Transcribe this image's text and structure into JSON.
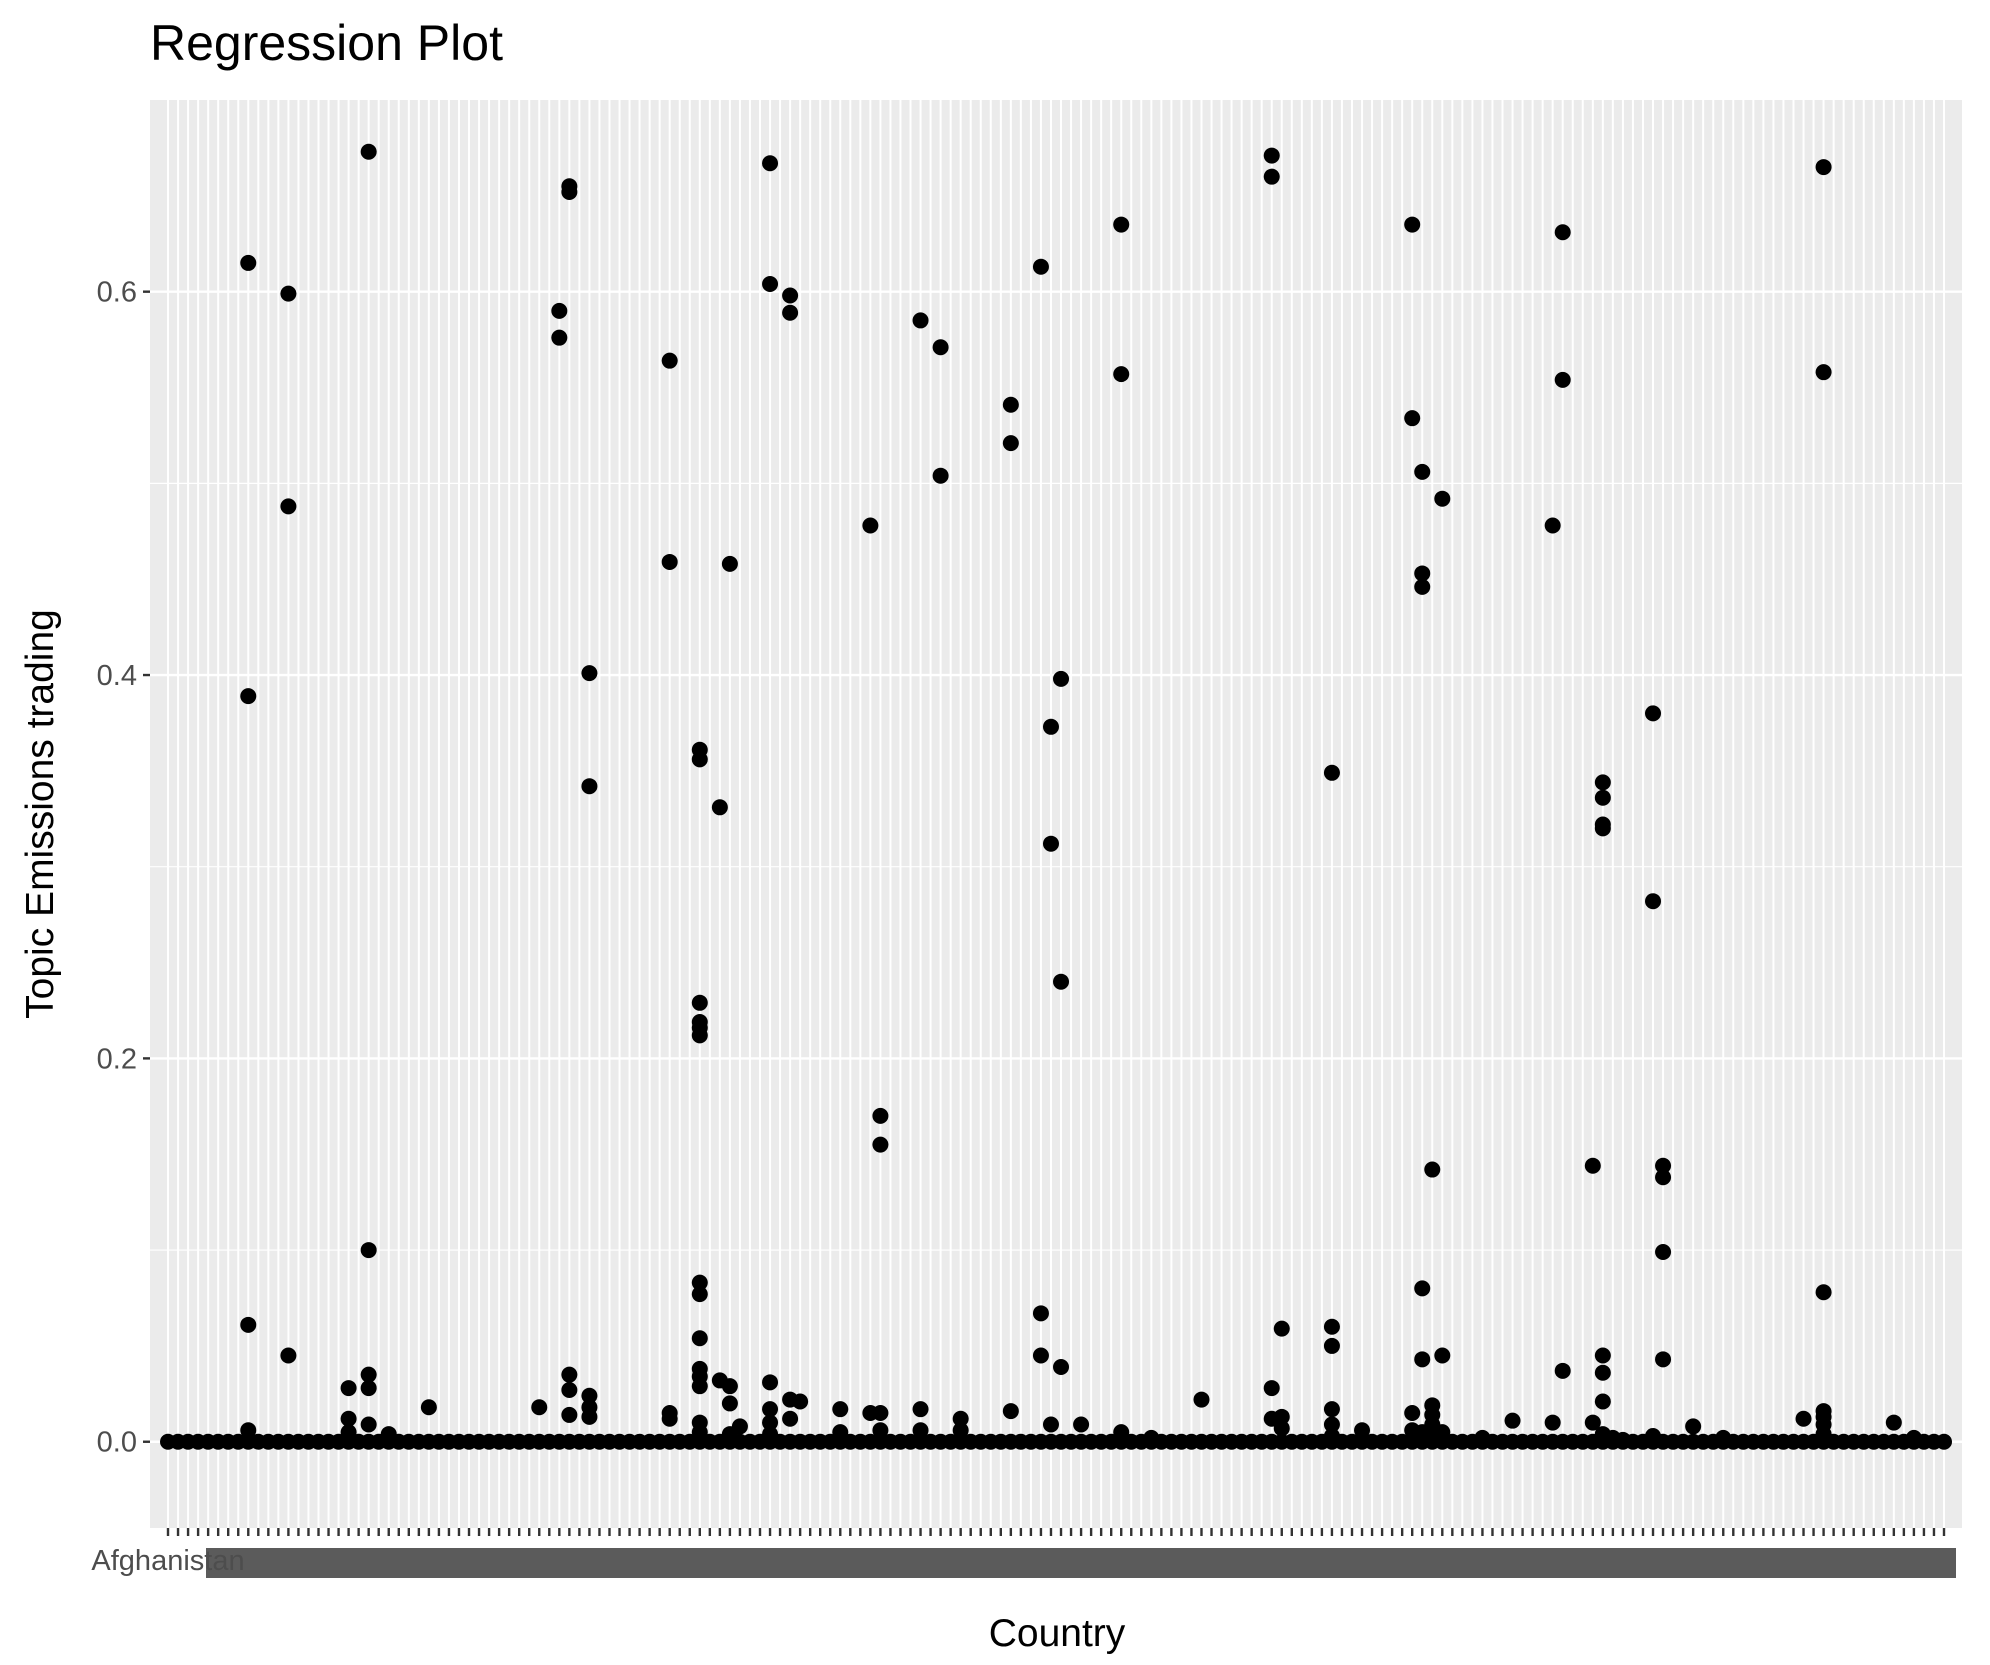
{
  "chart_data": {
    "type": "scatter",
    "title": "Regression Plot",
    "xlabel": "Country",
    "ylabel": "Topic Emissions trading",
    "category_count": 178,
    "first_category_label": "Afghanistan",
    "ylim": [
      -0.045,
      0.7
    ],
    "yticks": [
      0.0,
      0.2,
      0.4,
      0.6
    ],
    "ytick_labels": [
      "0.0",
      "0.2",
      "0.4",
      "0.6"
    ],
    "grid": true,
    "legend": "none",
    "point_color": "#000000",
    "panel_color": "#ebebeb",
    "grid_color": "#ffffff",
    "points": [
      [
        8,
        0.615
      ],
      [
        8,
        0.389
      ],
      [
        8,
        0.061
      ],
      [
        8,
        0.006
      ],
      [
        12,
        0.599
      ],
      [
        12,
        0.488
      ],
      [
        12,
        0.045
      ],
      [
        18,
        0.028
      ],
      [
        18,
        0.012
      ],
      [
        18,
        0.005
      ],
      [
        20,
        0.673
      ],
      [
        20,
        0.1
      ],
      [
        20,
        0.035
      ],
      [
        20,
        0.028
      ],
      [
        20,
        0.009
      ],
      [
        22,
        0.004
      ],
      [
        26,
        0.018
      ],
      [
        37,
        0.018
      ],
      [
        39,
        0.59
      ],
      [
        39,
        0.576
      ],
      [
        40,
        0.655
      ],
      [
        40,
        0.652
      ],
      [
        40,
        0.035
      ],
      [
        40,
        0.027
      ],
      [
        40,
        0.014
      ],
      [
        42,
        0.401
      ],
      [
        42,
        0.342
      ],
      [
        42,
        0.024
      ],
      [
        42,
        0.018
      ],
      [
        42,
        0.013
      ],
      [
        50,
        0.564
      ],
      [
        50,
        0.459
      ],
      [
        50,
        0.015
      ],
      [
        50,
        0.012
      ],
      [
        53,
        0.361
      ],
      [
        53,
        0.356
      ],
      [
        53,
        0.229
      ],
      [
        53,
        0.219
      ],
      [
        53,
        0.216
      ],
      [
        53,
        0.212
      ],
      [
        53,
        0.083
      ],
      [
        53,
        0.077
      ],
      [
        53,
        0.054
      ],
      [
        53,
        0.038
      ],
      [
        53,
        0.034
      ],
      [
        53,
        0.029
      ],
      [
        53,
        0.01
      ],
      [
        53,
        0.005
      ],
      [
        55,
        0.331
      ],
      [
        55,
        0.032
      ],
      [
        56,
        0.458
      ],
      [
        56,
        0.029
      ],
      [
        56,
        0.02
      ],
      [
        56,
        0.004
      ],
      [
        57,
        0.008
      ],
      [
        60,
        0.667
      ],
      [
        60,
        0.604
      ],
      [
        60,
        0.031
      ],
      [
        60,
        0.017
      ],
      [
        60,
        0.01
      ],
      [
        60,
        0.004
      ],
      [
        62,
        0.598
      ],
      [
        62,
        0.589
      ],
      [
        62,
        0.022
      ],
      [
        62,
        0.012
      ],
      [
        63,
        0.021
      ],
      [
        67,
        0.017
      ],
      [
        67,
        0.005
      ],
      [
        70,
        0.478
      ],
      [
        70,
        0.015
      ],
      [
        71,
        0.17
      ],
      [
        71,
        0.155
      ],
      [
        71,
        0.015
      ],
      [
        71,
        0.006
      ],
      [
        75,
        0.585
      ],
      [
        75,
        0.017
      ],
      [
        75,
        0.006
      ],
      [
        77,
        0.571
      ],
      [
        77,
        0.504
      ],
      [
        79,
        0.012
      ],
      [
        79,
        0.006
      ],
      [
        84,
        0.541
      ],
      [
        84,
        0.521
      ],
      [
        84,
        0.016
      ],
      [
        87,
        0.613
      ],
      [
        87,
        0.067
      ],
      [
        87,
        0.045
      ],
      [
        88,
        0.373
      ],
      [
        88,
        0.312
      ],
      [
        88,
        0.009
      ],
      [
        89,
        0.398
      ],
      [
        89,
        0.24
      ],
      [
        89,
        0.039
      ],
      [
        91,
        0.009
      ],
      [
        95,
        0.635
      ],
      [
        95,
        0.557
      ],
      [
        95,
        0.005
      ],
      [
        98,
        0.002
      ],
      [
        103,
        0.022
      ],
      [
        110,
        0.671
      ],
      [
        110,
        0.66
      ],
      [
        110,
        0.028
      ],
      [
        110,
        0.012
      ],
      [
        111,
        0.059
      ],
      [
        111,
        0.013
      ],
      [
        111,
        0.007
      ],
      [
        116,
        0.349
      ],
      [
        116,
        0.06
      ],
      [
        116,
        0.05
      ],
      [
        116,
        0.017
      ],
      [
        116,
        0.009
      ],
      [
        116,
        0.003
      ],
      [
        119,
        0.006
      ],
      [
        124,
        0.635
      ],
      [
        124,
        0.534
      ],
      [
        124,
        0.015
      ],
      [
        124,
        0.006
      ],
      [
        125,
        0.506
      ],
      [
        125,
        0.453
      ],
      [
        125,
        0.446
      ],
      [
        125,
        0.08
      ],
      [
        125,
        0.043
      ],
      [
        125,
        0.005
      ],
      [
        126,
        0.142
      ],
      [
        126,
        0.019
      ],
      [
        126,
        0.014
      ],
      [
        126,
        0.009
      ],
      [
        126,
        0.003
      ],
      [
        127,
        0.492
      ],
      [
        127,
        0.045
      ],
      [
        127,
        0.005
      ],
      [
        131,
        0.002
      ],
      [
        134,
        0.011
      ],
      [
        138,
        0.478
      ],
      [
        138,
        0.01
      ],
      [
        139,
        0.631
      ],
      [
        139,
        0.554
      ],
      [
        139,
        0.037
      ],
      [
        142,
        0.144
      ],
      [
        142,
        0.01
      ],
      [
        143,
        0.344
      ],
      [
        143,
        0.336
      ],
      [
        143,
        0.322
      ],
      [
        143,
        0.32
      ],
      [
        143,
        0.045
      ],
      [
        143,
        0.036
      ],
      [
        143,
        0.021
      ],
      [
        143,
        0.004
      ],
      [
        144,
        0.002
      ],
      [
        145,
        0.001
      ],
      [
        148,
        0.38
      ],
      [
        148,
        0.282
      ],
      [
        148,
        0.003
      ],
      [
        149,
        0.144
      ],
      [
        149,
        0.138
      ],
      [
        149,
        0.099
      ],
      [
        149,
        0.043
      ],
      [
        152,
        0.008
      ],
      [
        155,
        0.002
      ],
      [
        163,
        0.012
      ],
      [
        165,
        0.665
      ],
      [
        165,
        0.558
      ],
      [
        165,
        0.078
      ],
      [
        165,
        0.016
      ],
      [
        165,
        0.013
      ],
      [
        165,
        0.009
      ],
      [
        165,
        0.004
      ],
      [
        172,
        0.01
      ],
      [
        174,
        0.002
      ]
    ]
  }
}
